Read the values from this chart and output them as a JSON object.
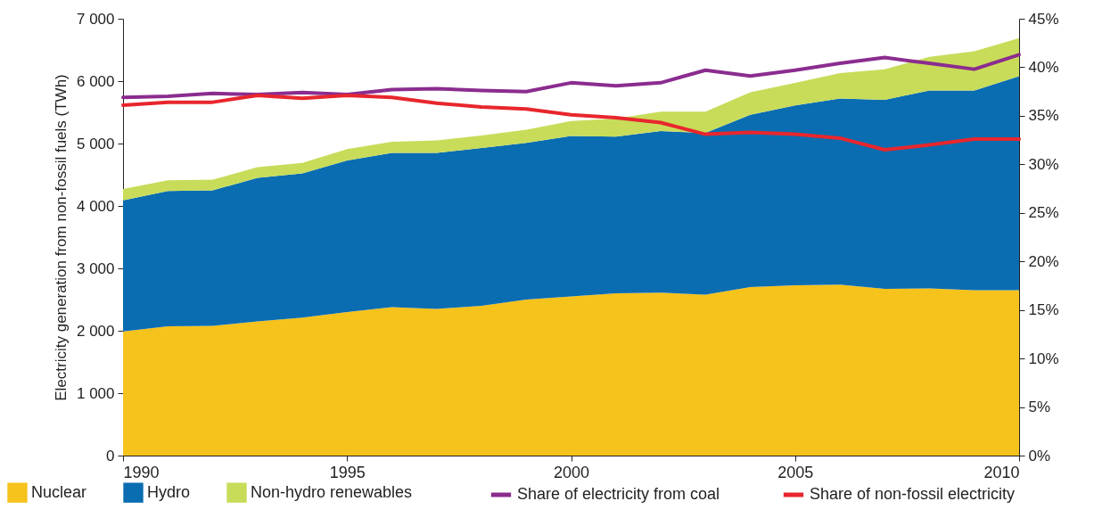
{
  "chart_data": {
    "type": "area",
    "stacked": true,
    "ylabel": "Electricity generation from non-fossil fuels (TWh)",
    "legend": "bottom",
    "x": [
      1990,
      1991,
      1992,
      1993,
      1994,
      1995,
      1996,
      1997,
      1998,
      1999,
      2000,
      2001,
      2002,
      2003,
      2004,
      2005,
      2006,
      2007,
      2008,
      2009,
      2010
    ],
    "xlim": [
      1990,
      2010
    ],
    "xticks": [
      1990,
      1995,
      2000,
      2005,
      2010
    ],
    "ylim": [
      0,
      7000
    ],
    "yticks": [
      0,
      {
        "value": 1000,
        "label": "1 000"
      },
      {
        "value": 2000,
        "label": "2 000"
      },
      {
        "value": 3000,
        "label": "3 000"
      },
      {
        "value": 4000,
        "label": "4 000"
      },
      {
        "value": 5000,
        "label": "5 000"
      },
      {
        "value": 6000,
        "label": "6 000"
      },
      {
        "value": 7000,
        "label": "7 000"
      }
    ],
    "y2lim": [
      0,
      45
    ],
    "y2ticks": [
      {
        "value": 0,
        "label": "0%"
      },
      {
        "value": 5,
        "label": "5%"
      },
      {
        "value": 10,
        "label": "10%"
      },
      {
        "value": 15,
        "label": "15%"
      },
      {
        "value": 20,
        "label": "20%"
      },
      {
        "value": 25,
        "label": "25%"
      },
      {
        "value": 30,
        "label": "30%"
      },
      {
        "value": 35,
        "label": "35%"
      },
      {
        "value": 40,
        "label": "40%"
      },
      {
        "value": 45,
        "label": "45%"
      }
    ],
    "series": [
      {
        "name": "Nuclear",
        "color": "#f6c21c",
        "values": [
          1990,
          2070,
          2080,
          2150,
          2210,
          2300,
          2380,
          2350,
          2400,
          2500,
          2550,
          2600,
          2610,
          2580,
          2700,
          2730,
          2740,
          2670,
          2680,
          2650,
          2650
        ]
      },
      {
        "name": "Hydro",
        "color": "#0a6db1",
        "values": [
          2100,
          2170,
          2170,
          2300,
          2310,
          2430,
          2470,
          2500,
          2530,
          2510,
          2570,
          2510,
          2590,
          2590,
          2760,
          2880,
          2980,
          3030,
          3170,
          3200,
          3430
        ]
      },
      {
        "name": "Non-hydro renewables",
        "color": "#c8dc5a",
        "values": [
          180,
          170,
          170,
          170,
          170,
          180,
          180,
          200,
          200,
          210,
          240,
          290,
          310,
          340,
          360,
          360,
          410,
          490,
          540,
          630,
          610
        ]
      },
      {
        "name": "Share of electricity from coal",
        "type": "line",
        "axis": "y2",
        "color": "#8b2c8f",
        "values": [
          36.9,
          37.0,
          37.3,
          37.2,
          37.4,
          37.2,
          37.7,
          37.8,
          37.6,
          37.5,
          38.4,
          38.1,
          38.4,
          39.7,
          39.1,
          39.7,
          40.4,
          41.0,
          40.4,
          39.8,
          41.3
        ]
      },
      {
        "name": "Share of non-fossil electricity",
        "type": "line",
        "axis": "y2",
        "color": "#e8262d",
        "values": [
          36.1,
          36.4,
          36.4,
          37.1,
          36.8,
          37.1,
          36.9,
          36.3,
          35.9,
          35.7,
          35.1,
          34.8,
          34.3,
          33.1,
          33.3,
          33.1,
          32.7,
          31.5,
          32.0,
          32.6,
          32.6
        ]
      }
    ]
  }
}
